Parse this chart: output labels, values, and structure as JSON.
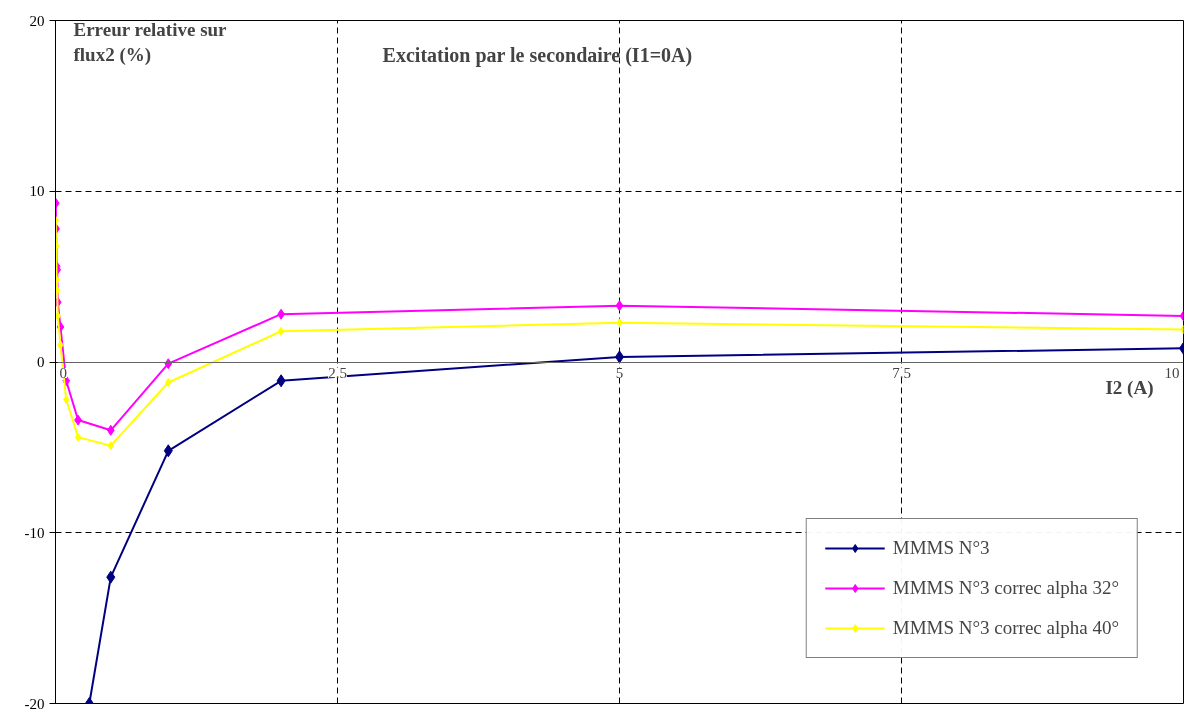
{
  "chart_data": {
    "type": "line",
    "title": "Excitation par le secondaire (I1=0A)",
    "xlabel": "I2 (A)",
    "ylabel": "Erreur relative sur flux2 (%)",
    "xlim": [
      0,
      10
    ],
    "ylim": [
      -20,
      20
    ],
    "xticks": [
      0,
      2.5,
      5,
      7.5,
      10
    ],
    "yticks": [
      -20,
      -10,
      0,
      10,
      20
    ],
    "grid": true,
    "legend": "bottom right",
    "marker": "diamond",
    "line_style": "solid",
    "series": [
      {
        "name": "MMMS N°3",
        "color": "#000080",
        "x": [
          0.3,
          0.49,
          1.0,
          2.0,
          5,
          10
        ],
        "values": [
          -20,
          -12.6,
          -5.2,
          -1.1,
          0.3,
          0.8
        ]
      },
      {
        "name": "MMMS N°3 correc alpha 32°",
        "color": "#ff00ff",
        "x": [
          0.002,
          0.005,
          0.01,
          0.015,
          0.02,
          0.044,
          0.095,
          0.2,
          0.49,
          1.0,
          2.0,
          5,
          10
        ],
        "values": [
          9.3,
          7.8,
          5.6,
          5.4,
          3.5,
          2.05,
          -1.1,
          -3.4,
          -4.0,
          -0.1,
          2.8,
          3.3,
          2.7
        ]
      },
      {
        "name": "MMMS N°3 correc alpha 40°",
        "color": "#ffff00",
        "x": [
          0.002,
          0.005,
          0.01,
          0.015,
          0.02,
          0.044,
          0.095,
          0.2,
          0.49,
          1.0,
          2.0,
          5,
          10
        ],
        "values": [
          8.3,
          6.8,
          4.8,
          4.2,
          2.7,
          1.0,
          -2.2,
          -4.4,
          -4.9,
          -1.2,
          1.8,
          2.3,
          1.9
        ]
      }
    ]
  }
}
